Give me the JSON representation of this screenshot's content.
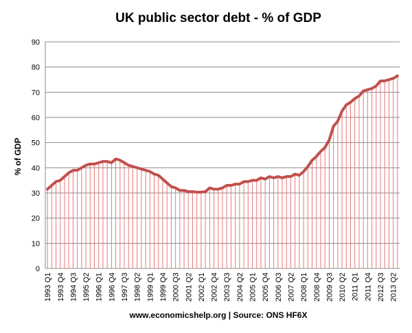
{
  "chart_data": {
    "type": "line",
    "title": "UK public sector debt - % of GDP",
    "ylabel": "% of GDP",
    "source": "www.economicshelp.org | Source: ONS HF6X",
    "color": "#c0504d",
    "drop_color": "#e8787a",
    "grid": true,
    "categories": [
      "1993 Q1",
      null,
      null,
      "1993 Q4",
      null,
      null,
      "1994 Q3",
      null,
      null,
      "1995 Q2",
      null,
      null,
      "1996 Q1",
      null,
      null,
      "1996 Q4",
      null,
      null,
      "1997 Q3",
      null,
      null,
      "1998 Q2",
      null,
      null,
      "1999 Q1",
      null,
      null,
      "1999 Q4",
      null,
      null,
      "2000 Q3",
      null,
      null,
      "2001 Q2",
      null,
      null,
      "2002 Q1",
      null,
      null,
      "2002 Q4",
      null,
      null,
      "2003 Q3",
      null,
      null,
      "2004 Q2",
      null,
      null,
      "2005 Q1",
      null,
      null,
      "2005 Q4",
      null,
      null,
      "2006 Q3",
      null,
      null,
      "2007 Q2",
      null,
      null,
      "2008 Q1",
      null,
      null,
      "2008 Q4",
      null,
      null,
      "2009 Q3",
      null,
      null,
      "2010 Q2",
      null,
      null,
      "2011 Q1",
      null,
      null,
      "2011 Q4",
      null,
      null,
      "2012 Q3",
      null,
      null,
      "2013 Q2",
      null
    ],
    "values": [
      31.5,
      33,
      34.5,
      35,
      36.5,
      38,
      39,
      39,
      40,
      41,
      41.5,
      41.5,
      42,
      42.5,
      42.5,
      42,
      43.5,
      43,
      42,
      41,
      40.5,
      40,
      39.5,
      39,
      38.5,
      37.5,
      37,
      35.5,
      34,
      32.5,
      32,
      31,
      31,
      30.5,
      30.5,
      30.3,
      30.3,
      30.5,
      32,
      31.5,
      31.5,
      32,
      33,
      33,
      33.5,
      33.5,
      34.5,
      34.5,
      35,
      35,
      36,
      35.5,
      36.5,
      36,
      36.5,
      36,
      36.5,
      36.5,
      37.5,
      37,
      38.5,
      40.5,
      43,
      44.5,
      46.5,
      48,
      51,
      56.5,
      58.5,
      62.5,
      65,
      66,
      67.5,
      68.5,
      70.5,
      71,
      71.5,
      72.5,
      74.5,
      74.5,
      75,
      75.5,
      76.5
    ],
    "ylim": [
      0,
      90
    ],
    "yticks": [
      0,
      10,
      20,
      30,
      40,
      50,
      60,
      70,
      80,
      90
    ]
  }
}
